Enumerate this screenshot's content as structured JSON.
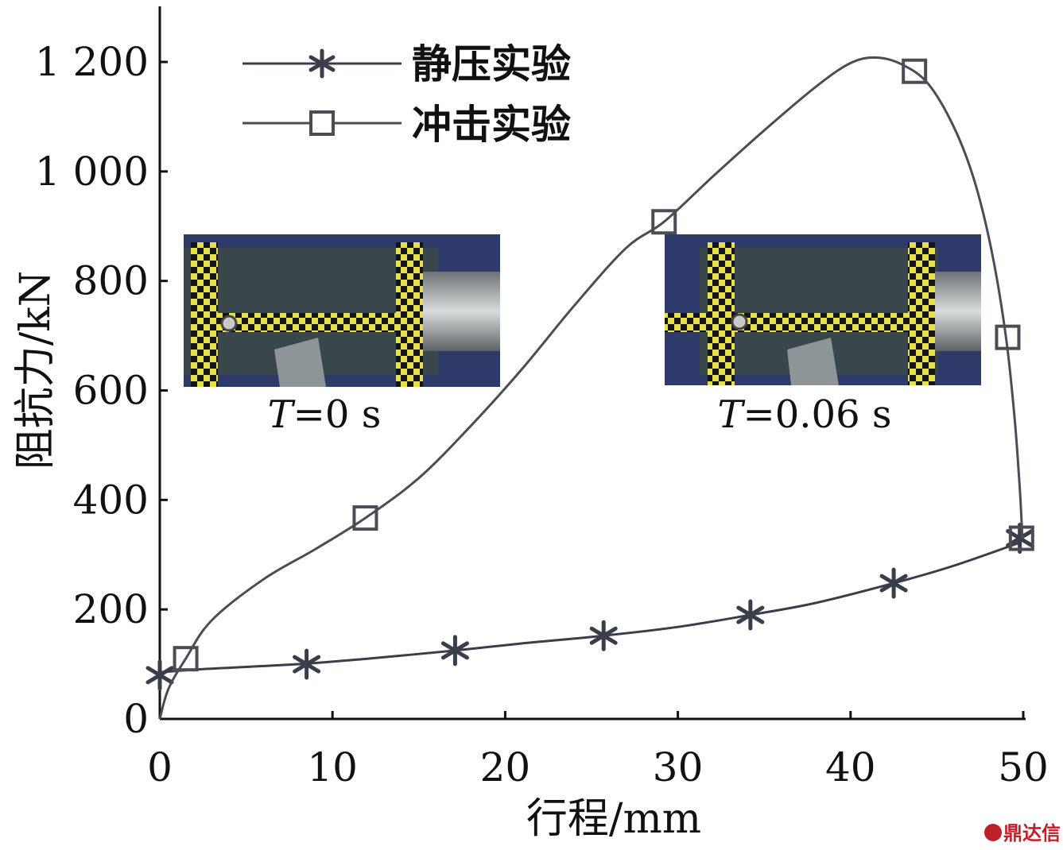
{
  "chart_data": {
    "type": "line",
    "title": "",
    "xlabel": "行程/mm",
    "ylabel": "阻抗力/kN",
    "xlim": [
      0,
      50
    ],
    "ylim": [
      0,
      1300
    ],
    "x_ticks": [
      "0",
      "10",
      "20",
      "30",
      "40",
      "50"
    ],
    "y_ticks": [
      "0",
      "200",
      "400",
      "600",
      "800",
      "1 000",
      "1 200"
    ],
    "grid": false,
    "legend_position": "top-left",
    "series": [
      {
        "name": "静压实验",
        "marker": "asterisk",
        "color": "#3a3d4a",
        "marker_points": {
          "x": [
            0,
            8.5,
            17.1,
            25.7,
            34.2,
            42.5,
            49.8
          ],
          "y": [
            80,
            100,
            125,
            152,
            190,
            248,
            330
          ]
        },
        "curve": {
          "x": [
            0,
            2,
            5,
            8.5,
            12,
            17.1,
            21,
            25.7,
            30,
            34.2,
            38,
            42.5,
            46,
            49.8
          ],
          "y": [
            85,
            90,
            95,
            101,
            110,
            125,
            138,
            152,
            168,
            190,
            212,
            248,
            280,
            322
          ]
        }
      },
      {
        "name": "冲击实验",
        "marker": "square",
        "color": "#4a4d55",
        "marker_points": {
          "x": [
            1.5,
            11.9,
            29.2,
            43.7,
            49.1,
            49.9
          ],
          "y": [
            110,
            367,
            908,
            1183,
            697,
            330
          ]
        },
        "curve": {
          "x": [
            0,
            0.5,
            1.5,
            3,
            6,
            9,
            11.9,
            15,
            18,
            21,
            24,
            27,
            29.2,
            32,
            35,
            38,
            40,
            41.5,
            43,
            44.5,
            46,
            47.2,
            48.2,
            49.0,
            49.5,
            49.8,
            49.95
          ],
          "y": [
            0,
            55,
            110,
            180,
            255,
            310,
            367,
            440,
            535,
            640,
            755,
            860,
            908,
            990,
            1075,
            1155,
            1198,
            1208,
            1195,
            1160,
            1080,
            980,
            850,
            697,
            550,
            420,
            330
          ]
        }
      }
    ],
    "photos": [
      {
        "caption_italic": "T",
        "caption_rest": "=0 s"
      },
      {
        "caption_italic": "T",
        "caption_rest": "=0.06 s"
      }
    ]
  },
  "watermark": {
    "text": "鼎达信"
  }
}
